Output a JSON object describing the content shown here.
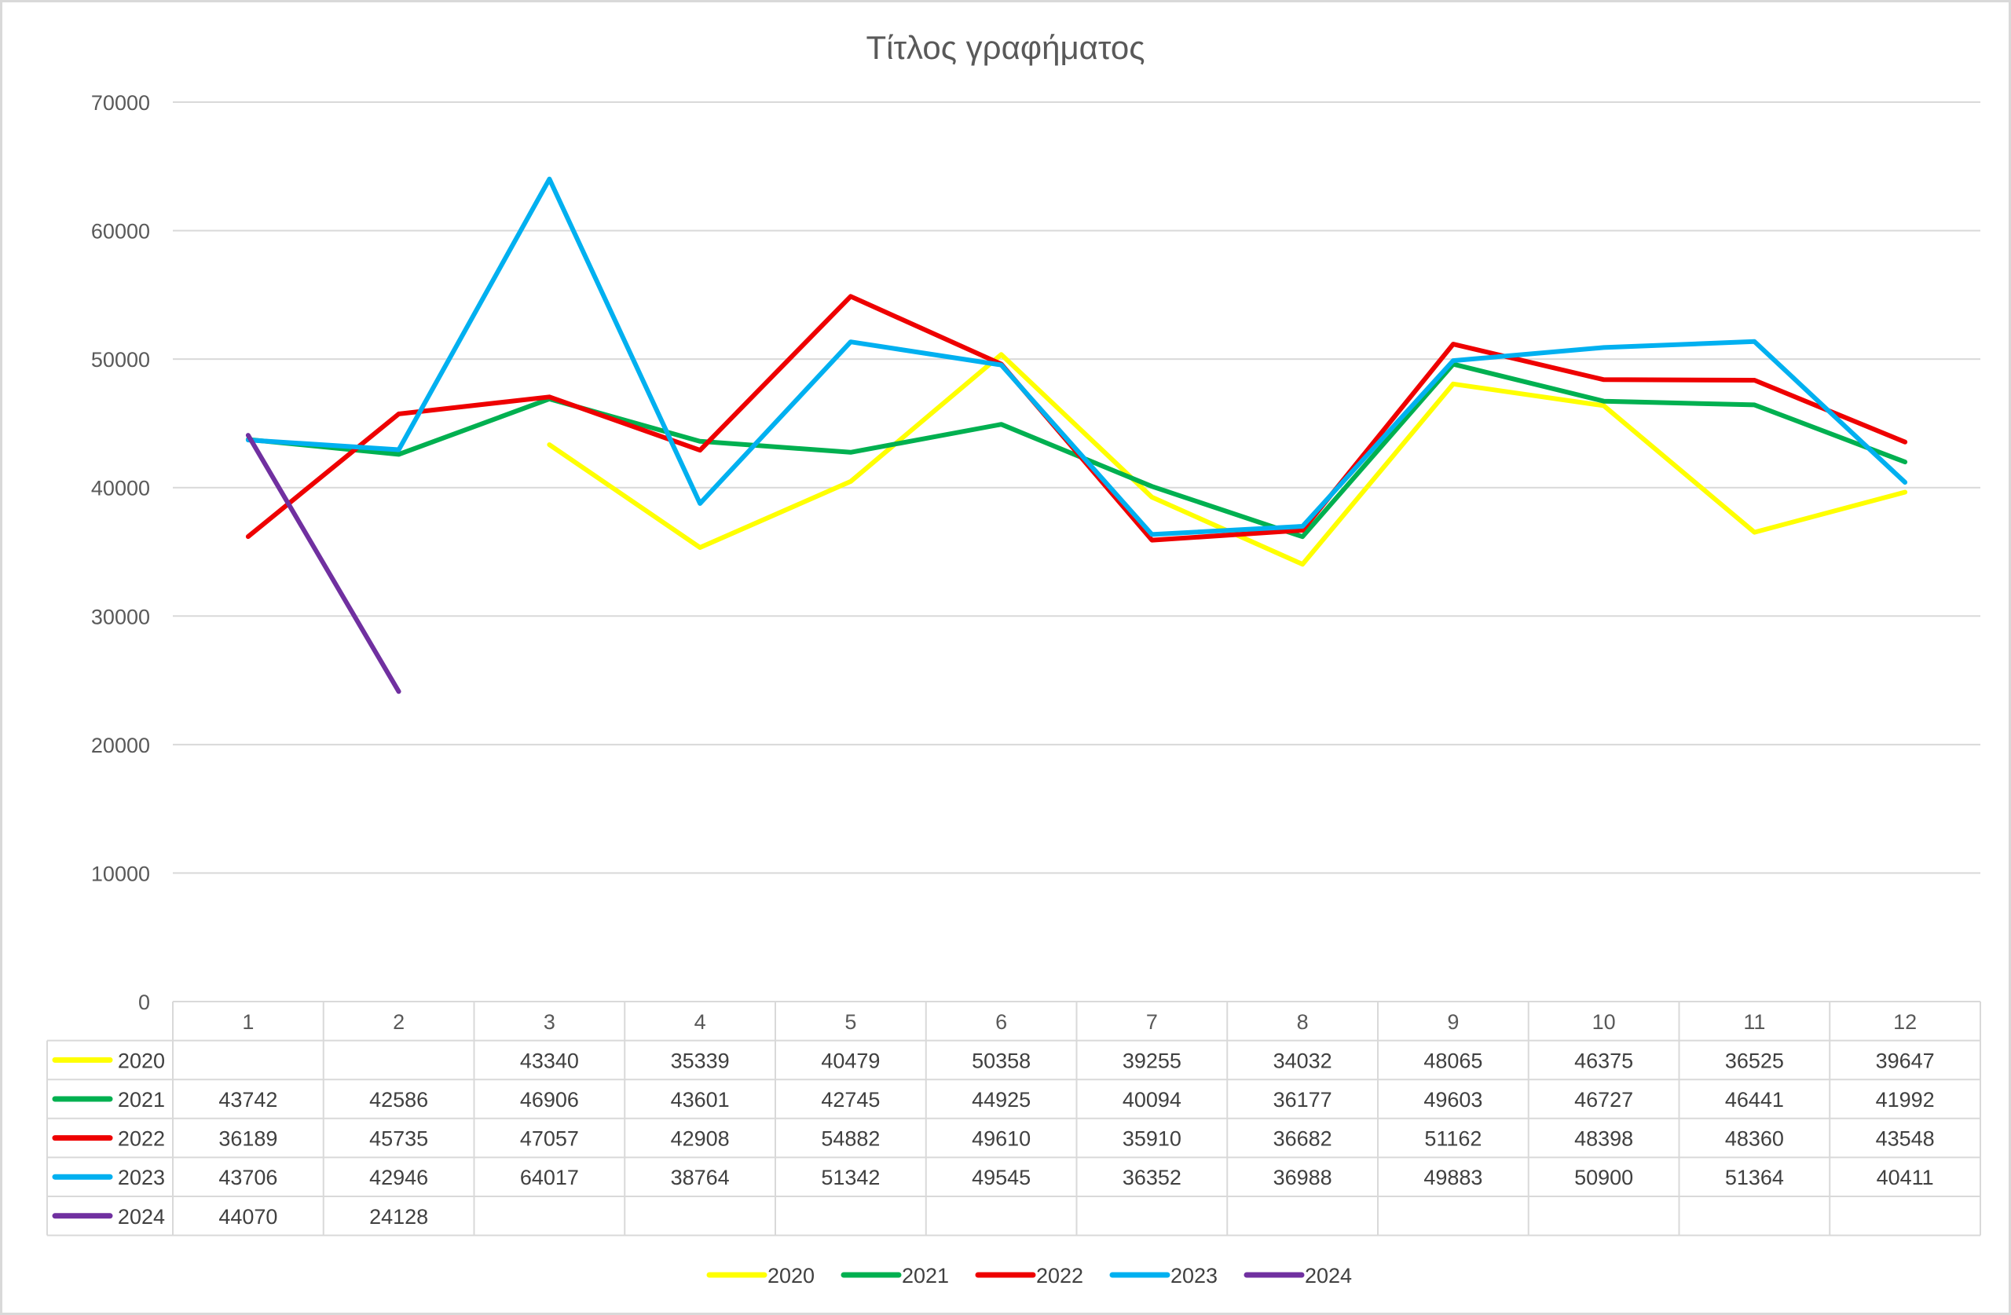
{
  "chart_data": {
    "type": "line",
    "title": "Τίτλος γραφήματος",
    "xlabel": "",
    "ylabel": "",
    "categories": [
      "1",
      "2",
      "3",
      "4",
      "5",
      "6",
      "7",
      "8",
      "9",
      "10",
      "11",
      "12"
    ],
    "ylim": [
      0,
      70000
    ],
    "yticks": [
      0,
      10000,
      20000,
      30000,
      40000,
      50000,
      60000,
      70000
    ],
    "grid": true,
    "legend_position": "bottom",
    "data_table": true,
    "series": [
      {
        "name": "2020",
        "color": "#ffff00",
        "values": [
          null,
          null,
          43340,
          35339,
          40479,
          50358,
          39255,
          34032,
          48065,
          46375,
          36525,
          39647
        ]
      },
      {
        "name": "2021",
        "color": "#00b050",
        "values": [
          43742,
          42586,
          46906,
          43601,
          42745,
          44925,
          40094,
          36177,
          49603,
          46727,
          46441,
          41992
        ]
      },
      {
        "name": "2022",
        "color": "#ee0000",
        "values": [
          36189,
          45735,
          47057,
          42908,
          54882,
          49610,
          35910,
          36682,
          51162,
          48398,
          48360,
          43548
        ]
      },
      {
        "name": "2023",
        "color": "#00b0f0",
        "values": [
          43706,
          42946,
          64017,
          38764,
          51342,
          49545,
          36352,
          36988,
          49883,
          50900,
          51364,
          40411
        ]
      },
      {
        "name": "2024",
        "color": "#7030a0",
        "values": [
          44070,
          24128,
          null,
          null,
          null,
          null,
          null,
          null,
          null,
          null,
          null,
          null
        ]
      }
    ]
  }
}
